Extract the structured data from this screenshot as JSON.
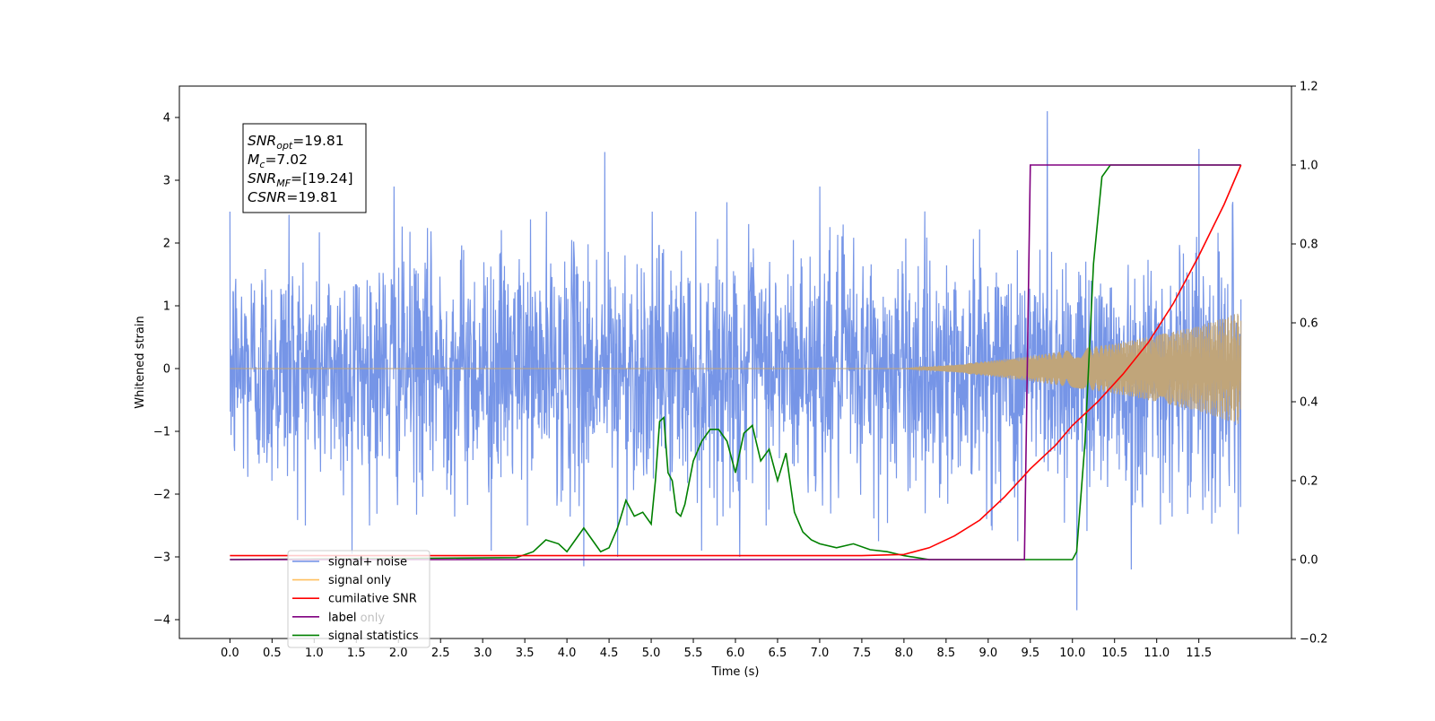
{
  "chart_data": {
    "type": "line",
    "xlabel": "Time (s)",
    "ylabel": "Whitened strain",
    "xlim": [
      -0.6,
      12.6
    ],
    "ylim": [
      -4.3,
      4.5
    ],
    "y2lim": [
      -0.2,
      1.2
    ],
    "x_ticks": [
      0.0,
      0.5,
      1.0,
      1.5,
      2.0,
      2.5,
      3.0,
      3.5,
      4.0,
      4.5,
      5.0,
      5.5,
      6.0,
      6.5,
      7.0,
      7.5,
      8.0,
      8.5,
      9.0,
      9.5,
      10.0,
      10.5,
      11.0,
      11.5
    ],
    "x_tick_labels": [
      "0.0",
      "0.5",
      "1.0",
      "1.5",
      "2.0",
      "2.5",
      "3.0",
      "3.5",
      "4.0",
      "4.5",
      "5.0",
      "5.5",
      "6.0",
      "6.5",
      "7.0",
      "7.5",
      "8.0",
      "8.5",
      "9.0",
      "9.5",
      "10.0",
      "10.5",
      "11.0",
      "11.5"
    ],
    "y_ticks": [
      -4,
      -3,
      -2,
      -1,
      0,
      1,
      2,
      3,
      4
    ],
    "y_tick_labels": [
      "−4",
      "−3",
      "−2",
      "−1",
      "0",
      "1",
      "2",
      "3",
      "4"
    ],
    "y2_ticks": [
      -0.2,
      0.0,
      0.2,
      0.4,
      0.6,
      0.8,
      1.0,
      1.2
    ],
    "y2_tick_labels": [
      "−0.2",
      "0.0",
      "0.2",
      "0.4",
      "0.6",
      "0.8",
      "1.0",
      "1.2"
    ],
    "grid": false,
    "legend_position": "bottom-left",
    "series": [
      {
        "name": "signal+ noise",
        "axis": "left",
        "color": "#6f8fe6",
        "description": "noise",
        "sigma": 0.75,
        "spikes": [
          [
            0.7,
            2.45
          ],
          [
            1.95,
            2.9
          ],
          [
            4.45,
            3.45
          ],
          [
            4.2,
            -3.15
          ],
          [
            9.7,
            4.1
          ],
          [
            10.05,
            -3.85
          ],
          [
            10.7,
            -3.2
          ],
          [
            11.5,
            3.5
          ],
          [
            11.9,
            2.6
          ],
          [
            1.45,
            -2.95
          ],
          [
            3.1,
            -2.9
          ],
          [
            5.6,
            -2.9
          ],
          [
            6.05,
            -3.0
          ],
          [
            7.7,
            -2.75
          ],
          [
            4.6,
            -3.0
          ],
          [
            5.9,
            2.65
          ],
          [
            7.0,
            2.9
          ],
          [
            9.35,
            -2.75
          ]
        ],
        "x_start": 0.0,
        "x_end": 12.0
      },
      {
        "name": "signal only",
        "axis": "left",
        "color": "#c0a57a",
        "description": "chirp",
        "amplitude_envelope": [
          [
            0.0,
            0.0
          ],
          [
            8.0,
            0.0
          ],
          [
            8.5,
            0.05
          ],
          [
            9.0,
            0.12
          ],
          [
            9.5,
            0.2
          ],
          [
            10.0,
            0.3
          ],
          [
            10.5,
            0.4
          ],
          [
            11.0,
            0.53
          ],
          [
            11.5,
            0.68
          ],
          [
            12.0,
            0.9
          ]
        ]
      },
      {
        "name": "cumilative SNR",
        "axis": "right",
        "color": "#ff0000",
        "x": [
          0.0,
          7.5,
          8.0,
          8.3,
          8.6,
          8.9,
          9.2,
          9.5,
          9.8,
          10.0,
          10.3,
          10.6,
          10.9,
          11.2,
          11.5,
          11.8,
          12.0
        ],
        "y": [
          0.01,
          0.01,
          0.013,
          0.03,
          0.06,
          0.1,
          0.16,
          0.23,
          0.29,
          0.34,
          0.4,
          0.47,
          0.55,
          0.65,
          0.77,
          0.9,
          1.0
        ]
      },
      {
        "name": "label",
        "axis": "right",
        "color": "#800080",
        "x": [
          0.0,
          9.43,
          9.5,
          12.0
        ],
        "y": [
          0.0,
          0.0,
          1.0,
          1.0
        ]
      },
      {
        "name": "label only",
        "axis": "right",
        "color": "#c0a57a",
        "x": [],
        "y": []
      },
      {
        "name": "signal statistics",
        "axis": "right",
        "color": "#008000",
        "x": [
          0.0,
          3.4,
          3.6,
          3.75,
          3.9,
          4.0,
          4.1,
          4.2,
          4.3,
          4.4,
          4.5,
          4.6,
          4.7,
          4.8,
          4.9,
          5.0,
          5.05,
          5.1,
          5.15,
          5.2,
          5.25,
          5.3,
          5.35,
          5.4,
          5.5,
          5.6,
          5.7,
          5.8,
          5.9,
          6.0,
          6.1,
          6.2,
          6.3,
          6.4,
          6.5,
          6.6,
          6.7,
          6.8,
          6.9,
          7.0,
          7.2,
          7.4,
          7.6,
          7.8,
          8.0,
          8.3,
          8.5,
          9.0,
          10.0,
          10.05,
          10.15,
          10.25,
          10.35,
          10.45,
          10.6,
          11.0,
          12.0
        ],
        "y": [
          0.0,
          0.005,
          0.02,
          0.05,
          0.04,
          0.02,
          0.05,
          0.08,
          0.05,
          0.02,
          0.03,
          0.08,
          0.15,
          0.11,
          0.12,
          0.09,
          0.2,
          0.35,
          0.36,
          0.22,
          0.2,
          0.12,
          0.11,
          0.14,
          0.25,
          0.3,
          0.33,
          0.33,
          0.3,
          0.22,
          0.32,
          0.34,
          0.25,
          0.28,
          0.2,
          0.27,
          0.12,
          0.07,
          0.05,
          0.04,
          0.03,
          0.04,
          0.025,
          0.02,
          0.01,
          0.0,
          0.0,
          0.0,
          0.0,
          0.02,
          0.3,
          0.75,
          0.97,
          1.0,
          1.0,
          1.0,
          1.0
        ]
      }
    ],
    "annotation_lines": [
      {
        "label": "SNR",
        "sub": "opt",
        "value": "=19.81"
      },
      {
        "label": "M",
        "sub": "c",
        "value": "=7.02"
      },
      {
        "label": "SNR",
        "sub": "MF",
        "value": "=[19.24]"
      },
      {
        "label": "CSNR",
        "sub": "",
        "value": "=19.81"
      }
    ]
  }
}
